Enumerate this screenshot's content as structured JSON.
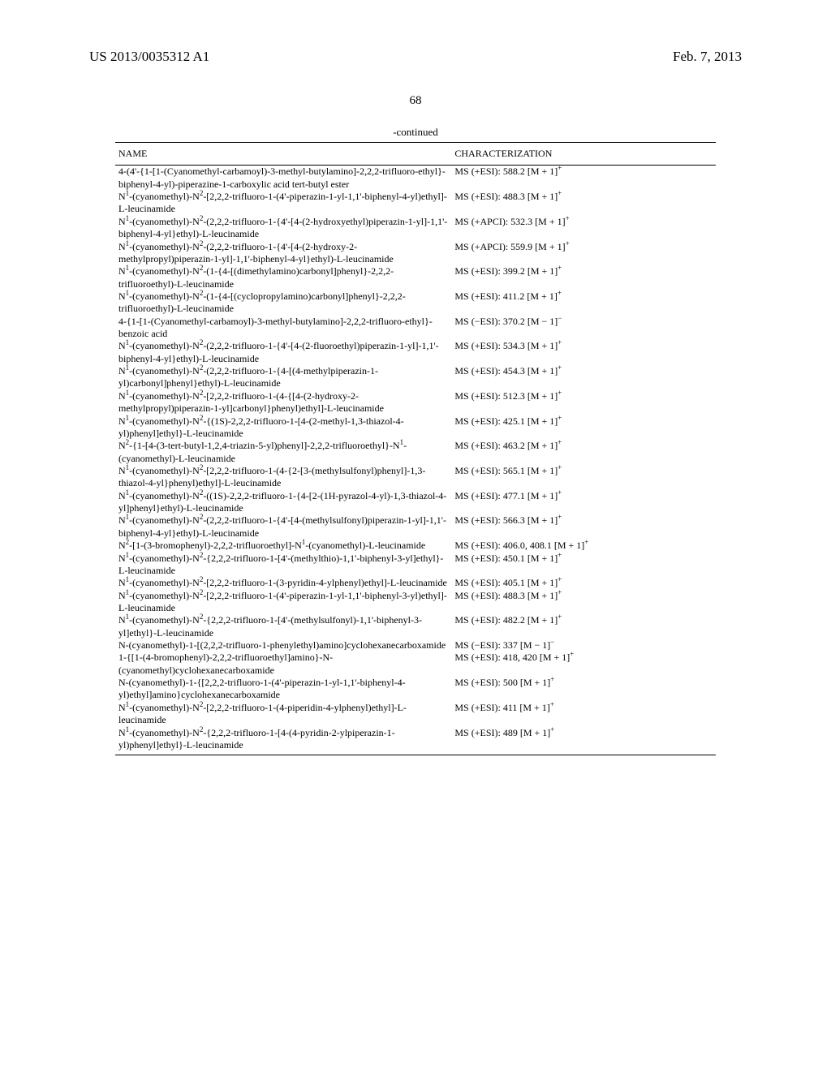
{
  "header": {
    "pub_number": "US 2013/0035312 A1",
    "pub_date": "Feb. 7, 2013"
  },
  "page_number": "68",
  "continued_label": "-continued",
  "columns": {
    "name": "NAME",
    "characterization": "CHARACTERIZATION"
  },
  "rows": [
    {
      "name": "4-(4'-{1-[1-(Cyanomethyl-carbamoyl)-3-methyl-butylamino]-2,2,2-trifluoro-ethyl}-biphenyl-4-yl)-piperazine-1-carboxylic acid tert-butyl ester",
      "char": "MS (+ESI): 588.2 [M + 1]⁺"
    },
    {
      "name": "N¹-(cyanomethyl)-N²-[2,2,2-trifluoro-1-(4'-piperazin-1-yl-1,1'-biphenyl-4-yl)ethyl]-L-leucinamide",
      "char": "MS (+ESI): 488.3 [M + 1]⁺"
    },
    {
      "name": "N¹-(cyanomethyl)-N²-(2,2,2-trifluoro-1-{4'-[4-(2-hydroxyethyl)piperazin-1-yl]-1,1'-biphenyl-4-yl}ethyl)-L-leucinamide",
      "char": "MS (+APCI): 532.3 [M + 1]⁺"
    },
    {
      "name": "N¹-(cyanomethyl)-N²-(2,2,2-trifluoro-1-{4'-[4-(2-hydroxy-2-methylpropyl)piperazin-1-yl]-1,1'-biphenyl-4-yl}ethyl)-L-leucinamide",
      "char": "MS (+APCI): 559.9 [M + 1]⁺"
    },
    {
      "name": "N¹-(cyanomethyl)-N²-(1-{4-[(dimethylamino)carbonyl]phenyl}-2,2,2-trifluoroethyl)-L-leucinamide",
      "char": "MS (+ESI): 399.2 [M + 1]⁺"
    },
    {
      "name": "N¹-(cyanomethyl)-N²-(1-{4-[(cyclopropylamino)carbonyl]phenyl}-2,2,2-trifluoroethyl)-L-leucinamide",
      "char": "MS (+ESI): 411.2 [M + 1]⁺"
    },
    {
      "name": "4-{1-[1-(Cyanomethyl-carbamoyl)-3-methyl-butylamino]-2,2,2-trifluoro-ethyl}-benzoic acid",
      "char": "MS (−ESI): 370.2 [M − 1]⁻"
    },
    {
      "name": "N¹-(cyanomethyl)-N²-(2,2,2-trifluoro-1-{4'-[4-(2-fluoroethyl)piperazin-1-yl]-1,1'-biphenyl-4-yl}ethyl)-L-leucinamide",
      "char": "MS (+ESI): 534.3 [M + 1]⁺"
    },
    {
      "name": "N¹-(cyanomethyl)-N²-(2,2,2-trifluoro-1-{4-[(4-methylpiperazin-1-yl)carbonyl]phenyl}ethyl)-L-leucinamide",
      "char": "MS (+ESI): 454.3 [M + 1]⁺"
    },
    {
      "name": "N¹-(cyanomethyl)-N²-[2,2,2-trifluoro-1-(4-{[4-(2-hydroxy-2-methylpropyl)piperazin-1-yl]carbonyl}phenyl)ethyl]-L-leucinamide",
      "char": "MS (+ESI): 512.3 [M + 1]⁺"
    },
    {
      "name": "N¹-(cyanomethyl)-N²-{(1S)-2,2,2-trifluoro-1-[4-(2-methyl-1,3-thiazol-4-yl)phenyl]ethyl}-L-leucinamide",
      "char": "MS (+ESI): 425.1 [M + 1]⁺"
    },
    {
      "name": "N²-{1-[4-(3-tert-butyl-1,2,4-triazin-5-yl)phenyl]-2,2,2-trifluoroethyl}-N¹-(cyanomethyl)-L-leucinamide",
      "char": "MS (+ESI): 463.2 [M + 1]⁺"
    },
    {
      "name": "N¹-(cyanomethyl)-N²-[2,2,2-trifluoro-1-(4-{2-[3-(methylsulfonyl)phenyl]-1,3-thiazol-4-yl}phenyl)ethyl]-L-leucinamide",
      "char": "MS (+ESI): 565.1 [M + 1]⁺"
    },
    {
      "name": "N¹-(cyanomethyl)-N²-((1S)-2,2,2-trifluoro-1-{4-[2-(1H-pyrazol-4-yl)-1,3-thiazol-4-yl]phenyl}ethyl)-L-leucinamide",
      "char": "MS (+ESI): 477.1 [M + 1]⁺"
    },
    {
      "name": "N¹-(cyanomethyl)-N²-(2,2,2-trifluoro-1-{4'-[4-(methylsulfonyl)piperazin-1-yl]-1,1'-biphenyl-4-yl}ethyl)-L-leucinamide",
      "char": "MS (+ESI): 566.3 [M + 1]⁺"
    },
    {
      "name": "N²-[1-(3-bromophenyl)-2,2,2-trifluoroethyl]-N¹-(cyanomethyl)-L-leucinamide",
      "char": "MS (+ESI): 406.0, 408.1 [M + 1]⁺"
    },
    {
      "name": "N¹-(cyanomethyl)-N²-{2,2,2-trifluoro-1-[4'-(methylthio)-1,1'-biphenyl-3-yl]ethyl}-L-leucinamide",
      "char": "MS (+ESI): 450.1 [M + 1]⁺"
    },
    {
      "name": "N¹-(cyanomethyl)-N²-[2,2,2-trifluoro-1-(3-pyridin-4-ylphenyl)ethyl]-L-leucinamide",
      "char": "MS (+ESI): 405.1 [M + 1]⁺"
    },
    {
      "name": "N¹-(cyanomethyl)-N²-[2,2,2-trifluoro-1-(4'-piperazin-1-yl-1,1'-biphenyl-3-yl)ethyl]-L-leucinamide",
      "char": "MS (+ESI): 488.3 [M + 1]⁺"
    },
    {
      "name": "N¹-(cyanomethyl)-N²-{2,2,2-trifluoro-1-[4'-(methylsulfonyl)-1,1'-biphenyl-3-yl]ethyl}-L-leucinamide",
      "char": "MS (+ESI): 482.2 [M + 1]⁺"
    },
    {
      "name": "N-(cyanomethyl)-1-[(2,2,2-trifluoro-1-phenylethyl)amino]cyclohexanecarboxamide",
      "char": "MS (−ESI): 337 [M − 1]⁻"
    },
    {
      "name": "1-{[1-(4-bromophenyl)-2,2,2-trifluoroethyl]amino}-N-(cyanomethyl)cyclohexanecarboxamide",
      "char": "MS (+ESI): 418, 420 [M + 1]⁺"
    },
    {
      "name": "N-(cyanomethyl)-1-{[2,2,2-trifluoro-1-(4'-piperazin-1-yl-1,1'-biphenyl-4-yl)ethyl]amino}cyclohexanecarboxamide",
      "char": "MS (+ESI): 500 [M + 1]⁺"
    },
    {
      "name": "N¹-(cyanomethyl)-N²-[2,2,2-trifluoro-1-(4-piperidin-4-ylphenyl)ethyl]-L-leucinamide",
      "char": "MS (+ESI): 411 [M + 1]⁺"
    },
    {
      "name": "N¹-(cyanomethyl)-N²-{2,2,2-trifluoro-1-[4-(4-pyridin-2-ylpiperazin-1-yl)phenyl]ethyl}-L-leucinamide",
      "char": "MS (+ESI): 489 [M + 1]⁺"
    }
  ]
}
